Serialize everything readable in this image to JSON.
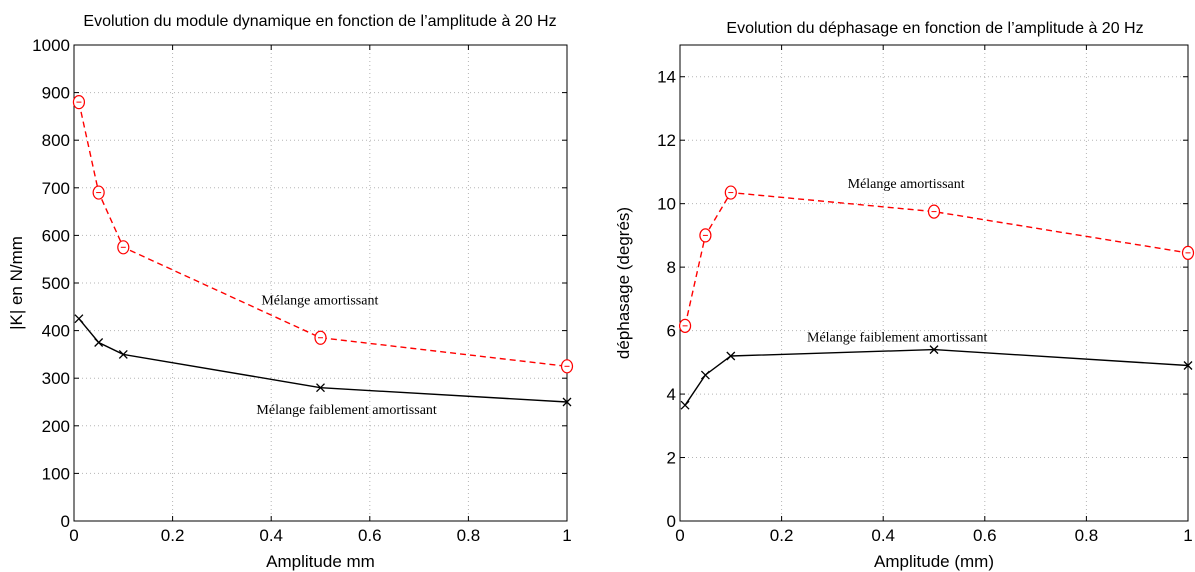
{
  "chart_data": [
    {
      "type": "line",
      "title": "Evolution du module dynamique en fonction de l’amplitude à 20 Hz",
      "xlabel": "Amplitude mm",
      "ylabel": "|K| en N/mm",
      "xlim": [
        0,
        1
      ],
      "ylim": [
        0,
        1000
      ],
      "xticks": [
        0,
        0.2,
        0.4,
        0.6,
        0.8,
        1
      ],
      "yticks": [
        0,
        100,
        200,
        300,
        400,
        500,
        600,
        700,
        800,
        900,
        1000
      ],
      "xtick_labels": [
        "0",
        "0.2",
        "0.4",
        "0.6",
        "0.8",
        "1"
      ],
      "ytick_labels": [
        "0",
        "100",
        "200",
        "300",
        "400",
        "500",
        "600",
        "700",
        "800",
        "900",
        "1000"
      ],
      "grid": true,
      "series": [
        {
          "name": "Mélange amortissant",
          "color": "#ff0000",
          "line_style": "dashed",
          "marker": "circle",
          "x": [
            0.01,
            0.05,
            0.1,
            0.5,
            1
          ],
          "values": [
            880,
            690,
            575,
            385,
            325
          ]
        },
        {
          "name": "Mélange faiblement amortissant",
          "color": "#000000",
          "line_style": "solid",
          "marker": "x",
          "x": [
            0.01,
            0.05,
            0.1,
            0.5,
            1
          ],
          "values": [
            425,
            375,
            350,
            280,
            250
          ]
        }
      ],
      "annotations": [
        {
          "text": "Mélange amortissant",
          "x": 0.38,
          "y": 455
        },
        {
          "text": "Mélange faiblement amortissant",
          "x": 0.37,
          "y": 225
        }
      ]
    },
    {
      "type": "line",
      "title": "Evolution du déphasage  en fonction de l’amplitude à 20 Hz",
      "xlabel": "Amplitude (mm)",
      "ylabel": "déphasage (degrés)",
      "xlim": [
        0,
        1
      ],
      "ylim": [
        0,
        15
      ],
      "xticks": [
        0,
        0.2,
        0.4,
        0.6,
        0.8,
        1
      ],
      "yticks": [
        0,
        2,
        4,
        6,
        8,
        10,
        12,
        14
      ],
      "xtick_labels": [
        "0",
        "0.2",
        "0.4",
        "0.6",
        "0.8",
        "1"
      ],
      "ytick_labels": [
        "0",
        "2",
        "4",
        "6",
        "8",
        "10",
        "12",
        "14"
      ],
      "grid": true,
      "series": [
        {
          "name": "Mélange amortissant",
          "color": "#ff0000",
          "line_style": "dashed",
          "marker": "circle",
          "x": [
            0.01,
            0.05,
            0.1,
            0.5,
            1
          ],
          "values": [
            6.15,
            9.0,
            10.35,
            9.75,
            8.45
          ]
        },
        {
          "name": "Mélange faiblement amortissant",
          "color": "#000000",
          "line_style": "solid",
          "marker": "x",
          "x": [
            0.01,
            0.05,
            0.1,
            0.5,
            1
          ],
          "values": [
            3.65,
            4.6,
            5.2,
            5.4,
            4.9
          ]
        }
      ],
      "annotations": [
        {
          "text": "Mélange amortissant",
          "x": 0.33,
          "y": 10.5
        },
        {
          "text": "Mélange faiblement amortissant",
          "x": 0.25,
          "y": 5.65
        }
      ]
    }
  ]
}
